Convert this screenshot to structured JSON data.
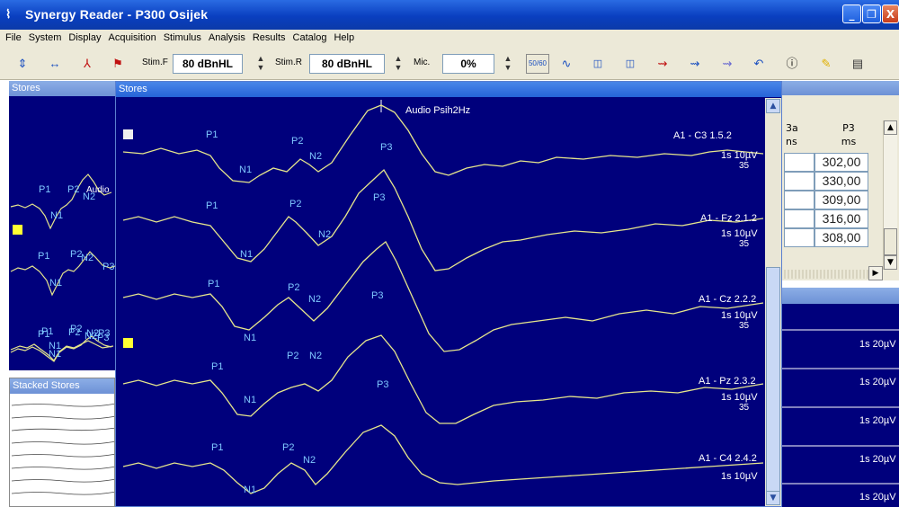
{
  "window": {
    "title": "Synergy Reader  -  P300 Osijek",
    "min": "_",
    "restore": "❐",
    "close": "X"
  },
  "menu": [
    "File",
    "System",
    "Display",
    "Acquisition",
    "Stimulus",
    "Analysis",
    "Results",
    "Catalog",
    "Help"
  ],
  "toolbar": {
    "stim_f_label": "Stim.F",
    "stim_f_value": "80 dBnHL",
    "stim_r_label": "Stim.R",
    "stim_r_value": "80 dBnHL",
    "mic_label": "Mic.",
    "mic_value": "0%",
    "filter_label": "50/60"
  },
  "left_stores": {
    "title": "Stores",
    "traces": [
      {
        "labels": [
          "P1",
          "P2",
          "N2",
          "N1",
          "Audio"
        ]
      },
      {
        "labels": [
          "P1",
          "P2",
          "N2",
          "P3",
          "N1"
        ]
      },
      {
        "labels": [
          "P1",
          "P2",
          "N2",
          "P3",
          "N1"
        ]
      },
      {
        "labels": [
          "P1",
          "P2",
          "N2",
          "P3",
          "N1"
        ]
      }
    ]
  },
  "stacked_stores": {
    "title": "Stacked Stores"
  },
  "main_stores": {
    "title": "Stores",
    "stimulus_label": "Audio Psih2Hz",
    "traces": [
      {
        "channel": "A1 - C3 1.5.2",
        "scale": "1s 10µV",
        "count": "35",
        "peaks": [
          "P1",
          "N1",
          "P2",
          "N2",
          "P3"
        ]
      },
      {
        "channel": "A1 - Fz 2.1.2",
        "scale": "1s 10µV",
        "count": "35",
        "peaks": [
          "P1",
          "N1",
          "P2",
          "N2",
          "P3"
        ]
      },
      {
        "channel": "A1 - Cz 2.2.2",
        "scale": "1s 10µV",
        "count": "35",
        "peaks": [
          "P1",
          "N1",
          "P2",
          "N2",
          "P3"
        ]
      },
      {
        "channel": "A1 - Pz 2.3.2",
        "scale": "1s 10µV",
        "count": "35",
        "peaks": [
          "P1",
          "N1",
          "P2",
          "N2",
          "P3"
        ]
      },
      {
        "channel": "A1 - C4 2.4.2",
        "scale": "1s 10µV",
        "count": "",
        "peaks": [
          "P1",
          "N1",
          "P2",
          "N2"
        ]
      }
    ]
  },
  "results_table": {
    "columns": [
      {
        "name": "3a",
        "unit": "ns"
      },
      {
        "name": "P3",
        "unit": "ms"
      }
    ],
    "p3_values": [
      "302,00",
      "330,00",
      "309,00",
      "316,00",
      "308,00"
    ]
  },
  "right_traces": {
    "scales": [
      "1s 20µV",
      "1s 20µV",
      "1s 20µV",
      "1s 20µV",
      "1s 20µV"
    ]
  },
  "colors": {
    "panel_bg": "#00007c",
    "trace": "#e6e68c",
    "label": "#7fc8ff",
    "marker_white": "#eeeeee",
    "marker_yellow": "#ffff33"
  }
}
